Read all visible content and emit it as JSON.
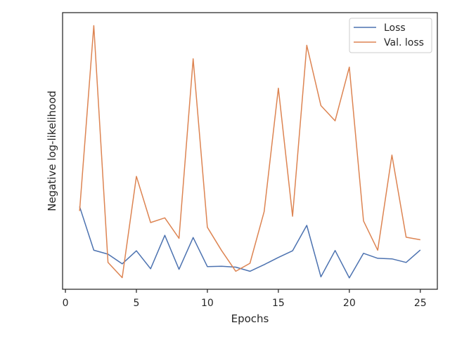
{
  "chart_data": {
    "type": "line",
    "title": "",
    "xlabel": "Epochs",
    "ylabel": "Negative log-likelihood",
    "xlim": [
      -0.2,
      26.2
    ],
    "ylim": [
      0,
      1
    ],
    "xticks": [
      0,
      5,
      10,
      15,
      20,
      25
    ],
    "yticks_visible": false,
    "grid": false,
    "legend": {
      "placement": "upper right"
    },
    "x": [
      1,
      2,
      3,
      4,
      5,
      6,
      7,
      8,
      9,
      10,
      11,
      12,
      13,
      14,
      15,
      16,
      17,
      18,
      19,
      20,
      21,
      22,
      23,
      24,
      25
    ],
    "series": [
      {
        "name": "Loss",
        "color": "#4c72b0",
        "values": [
          0.299,
          0.141,
          0.127,
          0.092,
          0.139,
          0.074,
          0.195,
          0.072,
          0.187,
          0.082,
          0.083,
          0.08,
          0.065,
          0.089,
          0.115,
          0.139,
          0.231,
          0.045,
          0.14,
          0.041,
          0.13,
          0.112,
          0.11,
          0.097,
          0.142
        ]
      },
      {
        "name": "Val. loss",
        "color": "#dd8452",
        "values": [
          0.283,
          0.953,
          0.097,
          0.042,
          0.408,
          0.241,
          0.258,
          0.184,
          0.833,
          0.224,
          0.14,
          0.065,
          0.094,
          0.281,
          0.727,
          0.264,
          0.882,
          0.664,
          0.609,
          0.803,
          0.247,
          0.141,
          0.485,
          0.188,
          0.179
        ]
      }
    ]
  }
}
